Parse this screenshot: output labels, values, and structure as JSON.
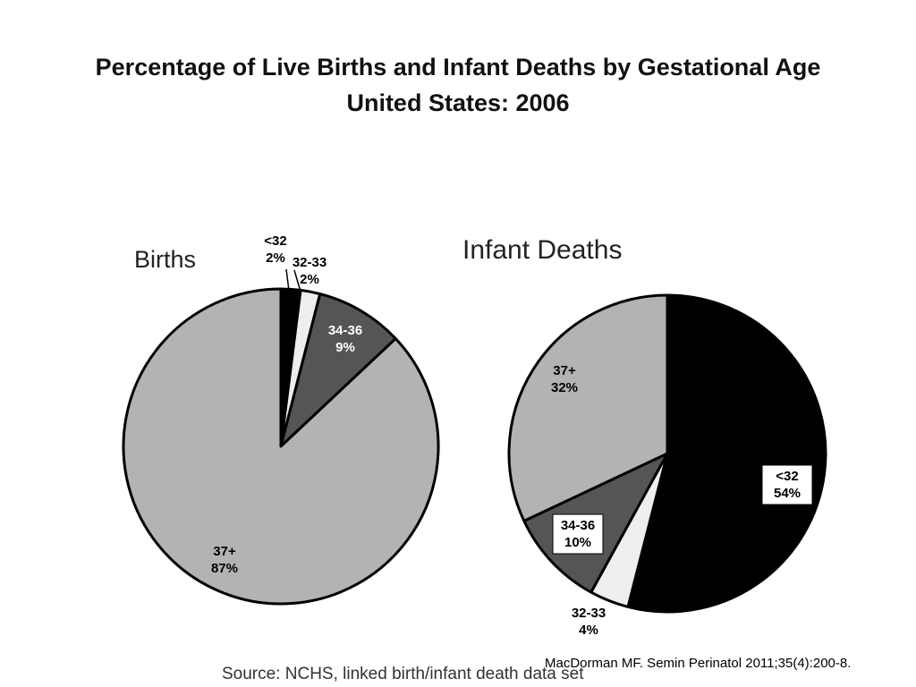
{
  "title": {
    "line1": "Percentage of Live Births and Infant Deaths by Gestational Age",
    "line2": "United States: 2006"
  },
  "chart_data": [
    {
      "type": "pie",
      "title": "Births",
      "categories": [
        "<32",
        "32-33",
        "34-36",
        "37+"
      ],
      "values": [
        2,
        2,
        9,
        87
      ],
      "colors": [
        "#000000",
        "#eeeeee",
        "#555555",
        "#b3b3b3"
      ]
    },
    {
      "type": "pie",
      "title": "Infant Deaths",
      "categories": [
        "<32",
        "32-33",
        "34-36",
        "37+"
      ],
      "values": [
        54,
        4,
        10,
        32
      ],
      "colors": [
        "#000000",
        "#eeeeee",
        "#555555",
        "#b3b3b3"
      ]
    }
  ],
  "citation": "MacDorman MF. Semin Perinatol 2011;35(4):200-8.",
  "source": "Source:  NCHS, linked birth/infant death data set"
}
